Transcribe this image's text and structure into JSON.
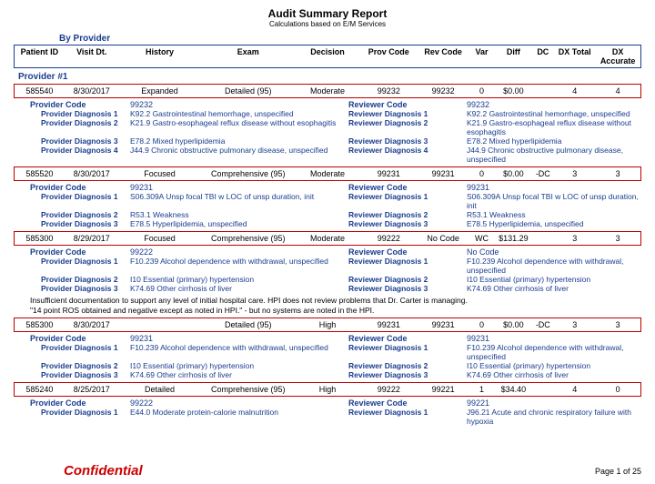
{
  "title": "Audit Summary Report",
  "subtitle": "Calculations based on E/M Services",
  "byProvider": "By Provider",
  "headers": {
    "pid": "Patient ID",
    "visit": "Visit Dt.",
    "hist": "History",
    "exam": "Exam",
    "dec": "Decision",
    "pcode": "Prov Code",
    "rcode": "Rev Code",
    "var": "Var",
    "diff": "Diff",
    "dc": "DC",
    "dxt": "DX Total",
    "dxa": "DX Accurate"
  },
  "providerHdr": "Provider #1",
  "enc": [
    {
      "pid": "585540",
      "visit": "8/30/2017",
      "hist": "Expanded",
      "exam": "Detailed (95)",
      "dec": "Moderate",
      "pcode": "99232",
      "rcode": "99232",
      "var": "0",
      "diff": "$0.00",
      "dc": "",
      "dxt": "4",
      "dxa": "4",
      "provCodeVal": "99232",
      "revCodeVal": "99232",
      "dx": [
        {
          "p": "K92.2 Gastrointestinal hemorrhage, unspecified",
          "r": "K92.2 Gastrointestinal hemorrhage, unspecified"
        },
        {
          "p": "K21.9 Gastro-esophageal reflux disease without esophagitis",
          "r": "K21.9 Gastro-esophageal reflux disease without esophagitis"
        },
        {
          "p": "E78.2 Mixed hyperlipidemia",
          "r": "E78.2 Mixed hyperlipidemia"
        },
        {
          "p": "J44.9 Chronic obstructive pulmonary disease, unspecified",
          "r": "J44.9 Chronic obstructive pulmonary disease, unspecified"
        }
      ]
    },
    {
      "pid": "585520",
      "visit": "8/30/2017",
      "hist": "Focused",
      "exam": "Comprehensive (95)",
      "dec": "Moderate",
      "pcode": "99231",
      "rcode": "99231",
      "var": "0",
      "diff": "$0.00",
      "dc": "-DC",
      "dxt": "3",
      "dxa": "3",
      "provCodeVal": "99231",
      "revCodeVal": "99231",
      "dx": [
        {
          "p": "S06.309A Unsp focal TBI w LOC of unsp duration, init",
          "r": "S06.309A Unsp focal TBI w LOC of unsp duration, init"
        },
        {
          "p": "R53.1 Weakness",
          "r": "R53.1 Weakness"
        },
        {
          "p": "E78.5 Hyperlipidemia, unspecified",
          "r": "E78.5 Hyperlipidemia, unspecified"
        }
      ]
    },
    {
      "pid": "585300",
      "visit": "8/29/2017",
      "hist": "Focused",
      "exam": "Comprehensive (95)",
      "dec": "Moderate",
      "pcode": "99222",
      "rcode": "No Code",
      "var": "WC",
      "diff": "$131.29",
      "dc": "",
      "dxt": "3",
      "dxa": "3",
      "provCodeVal": "99222",
      "revCodeVal": "No Code",
      "dx": [
        {
          "p": "F10.239 Alcohol dependence with withdrawal, unspecified",
          "r": "F10.239 Alcohol dependence with withdrawal, unspecified"
        },
        {
          "p": "I10 Essential (primary) hypertension",
          "r": "I10 Essential (primary) hypertension"
        },
        {
          "p": "K74.69 Other cirrhosis of liver",
          "r": "K74.69 Other cirrhosis of liver"
        }
      ],
      "note1": "Insufficient documentation to support any level of initial hospital care.  HPI does not review problems that Dr. Carter is managing.",
      "note2": "\"14 point ROS obtained and negative except as noted in HPI.\"  - but no systems are noted in the HPI."
    },
    {
      "pid": "585300",
      "visit": "8/30/2017",
      "hist": "",
      "exam": "Detailed (95)",
      "dec": "High",
      "pcode": "99231",
      "rcode": "99231",
      "var": "0",
      "diff": "$0.00",
      "dc": "-DC",
      "dxt": "3",
      "dxa": "3",
      "provCodeVal": "99231",
      "revCodeVal": "99231",
      "dx": [
        {
          "p": "F10.239 Alcohol dependence with withdrawal, unspecified",
          "r": "F10.239 Alcohol dependence with withdrawal, unspecified"
        },
        {
          "p": "I10 Essential (primary) hypertension",
          "r": "I10 Essential (primary) hypertension"
        },
        {
          "p": "K74.69 Other cirrhosis of liver",
          "r": "K74.69 Other cirrhosis of liver"
        }
      ]
    },
    {
      "pid": "585240",
      "visit": "8/25/2017",
      "hist": "Detailed",
      "exam": "Comprehensive (95)",
      "dec": "High",
      "pcode": "99222",
      "rcode": "99221",
      "var": "1",
      "diff": "$34.40",
      "dc": "",
      "dxt": "4",
      "dxa": "0",
      "provCodeVal": "99222",
      "revCodeVal": "99221",
      "dx": [
        {
          "p": "E44.0 Moderate protein-calorie malnutrition",
          "r": "J96.21 Acute and chronic respiratory failure with hypoxia"
        }
      ]
    }
  ],
  "labels": {
    "provCode": "Provider Code",
    "revCode": "Reviewer Code",
    "pdx": "Provider Diagnosis ",
    "rdx": "Reviewer Diagnosis "
  },
  "confidential": "Confidential",
  "page": "Page 1 of 25"
}
